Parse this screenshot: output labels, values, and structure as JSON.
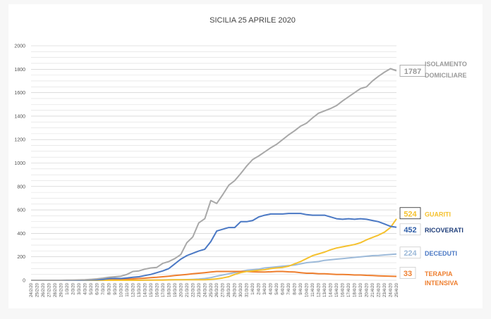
{
  "chart_data": {
    "type": "line",
    "title": "SICILIA 25 APRILE 2020",
    "ylim": [
      0,
      2000
    ],
    "yticks": [
      0,
      200,
      400,
      600,
      800,
      1000,
      1200,
      1400,
      1600,
      1800,
      2000
    ],
    "grid": true,
    "legend": "right, labels beside line ends",
    "x": [
      "24/2/20",
      "25/2/20",
      "26/2/20",
      "27/2/20",
      "28/2/20",
      "29/2/20",
      "1/3/20",
      "2/3/20",
      "3/3/20",
      "4/3/20",
      "5/3/20",
      "6/3/20",
      "7/3/20",
      "8/3/20",
      "9/3/20",
      "10/3/20",
      "11/3/20",
      "12/3/20",
      "13/3/20",
      "14/3/20",
      "15/3/20",
      "16/3/20",
      "17/3/20",
      "18/3/20",
      "19/3/20",
      "20/3/20",
      "21/3/20",
      "22/3/20",
      "23/3/20",
      "24/3/20",
      "25/3/20",
      "26/3/20",
      "27/3/20",
      "28/3/20",
      "29/3/20",
      "30/3/20",
      "31/3/20",
      "1/4/20",
      "2/4/20",
      "3/4/20",
      "4/4/20",
      "5/4/20",
      "6/4/20",
      "7/4/20",
      "8/4/20",
      "9/4/20",
      "10/4/20",
      "11/4/20",
      "12/4/20",
      "13/4/20",
      "14/4/20",
      "15/4/20",
      "16/4/20",
      "17/4/20",
      "18/4/20",
      "19/4/20",
      "20/4/20",
      "21/4/20",
      "22/4/20",
      "23/4/20",
      "24/4/20",
      "25/4/20"
    ],
    "series": [
      {
        "name": "ISOLAMENTO DOMICILIARE",
        "color": "#a8a8a8",
        "last_label": "1787",
        "values": [
          0,
          0,
          0,
          0,
          0,
          0,
          2,
          2,
          3,
          5,
          8,
          12,
          18,
          25,
          30,
          35,
          50,
          75,
          80,
          95,
          105,
          110,
          145,
          160,
          185,
          220,
          320,
          370,
          490,
          525,
          680,
          655,
          730,
          810,
          850,
          910,
          975,
          1030,
          1060,
          1095,
          1130,
          1160,
          1200,
          1240,
          1275,
          1315,
          1340,
          1385,
          1425,
          1445,
          1465,
          1490,
          1530,
          1565,
          1600,
          1635,
          1650,
          1700,
          1740,
          1775,
          1805,
          1787
        ]
      },
      {
        "name": "GUARITI",
        "color": "#f5c12e",
        "last_label": "524",
        "values": [
          0,
          0,
          0,
          0,
          0,
          0,
          0,
          0,
          0,
          0,
          0,
          0,
          0,
          0,
          0,
          0,
          0,
          0,
          0,
          2,
          2,
          2,
          2,
          3,
          5,
          5,
          5,
          5,
          5,
          5,
          8,
          12,
          20,
          30,
          50,
          65,
          75,
          80,
          85,
          90,
          100,
          105,
          110,
          120,
          140,
          160,
          185,
          210,
          225,
          240,
          260,
          275,
          285,
          295,
          305,
          320,
          345,
          365,
          385,
          410,
          450,
          524
        ]
      },
      {
        "name": "RICOVERATI",
        "color": "#4a78c4",
        "last_label": "452",
        "values": [
          0,
          0,
          0,
          0,
          0,
          0,
          0,
          0,
          0,
          2,
          3,
          5,
          8,
          15,
          17,
          15,
          20,
          25,
          30,
          40,
          50,
          65,
          80,
          100,
          140,
          180,
          210,
          230,
          250,
          265,
          330,
          420,
          435,
          450,
          450,
          500,
          500,
          510,
          540,
          555,
          565,
          565,
          565,
          570,
          570,
          570,
          560,
          555,
          555,
          555,
          540,
          525,
          520,
          525,
          520,
          525,
          520,
          510,
          500,
          480,
          460,
          452
        ]
      },
      {
        "name": "DECEDUTI",
        "color": "#9dbad9",
        "last_label": "224",
        "values": [
          0,
          0,
          0,
          0,
          0,
          0,
          0,
          0,
          0,
          0,
          0,
          0,
          0,
          0,
          0,
          0,
          0,
          0,
          0,
          1,
          2,
          3,
          3,
          4,
          5,
          5,
          6,
          8,
          10,
          15,
          22,
          35,
          45,
          55,
          65,
          75,
          85,
          90,
          95,
          105,
          110,
          115,
          120,
          125,
          130,
          140,
          150,
          155,
          160,
          170,
          175,
          180,
          185,
          190,
          195,
          200,
          205,
          210,
          212,
          216,
          220,
          224
        ]
      },
      {
        "name": "TERAPIA INTENSIVA",
        "color": "#ee7e2e",
        "last_label": "33",
        "values": [
          0,
          0,
          0,
          0,
          0,
          0,
          0,
          0,
          0,
          0,
          0,
          2,
          3,
          5,
          6,
          8,
          10,
          12,
          15,
          18,
          22,
          25,
          30,
          35,
          40,
          45,
          50,
          55,
          60,
          65,
          70,
          75,
          75,
          75,
          75,
          75,
          75,
          72,
          70,
          70,
          72,
          75,
          75,
          72,
          70,
          65,
          60,
          60,
          55,
          55,
          52,
          50,
          50,
          48,
          45,
          45,
          42,
          40,
          38,
          36,
          35,
          33
        ]
      }
    ]
  }
}
